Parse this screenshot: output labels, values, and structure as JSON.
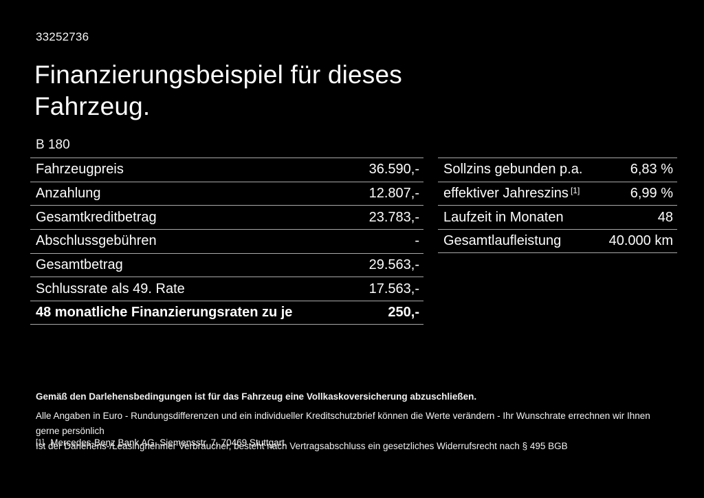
{
  "page": {
    "vehicle_id": "33252736",
    "title_line1": "Finanzierungsbeispiel für dieses",
    "title_line2": "Fahrzeug.",
    "model": "B 180"
  },
  "financing_table": {
    "rows": [
      {
        "label": "Fahrzeugpreis",
        "value": "36.590,-"
      },
      {
        "label": "Anzahlung",
        "value": "12.807,-"
      },
      {
        "label": "Gesamtkreditbetrag",
        "value": "23.783,-"
      },
      {
        "label": "Abschlussgebühren",
        "value": "-"
      },
      {
        "label": "Gesamtbetrag",
        "value": "29.563,-"
      },
      {
        "label": "Schlussrate als 49. Rate",
        "value": "17.563,-"
      },
      {
        "label": "48 monatliche Finanzierungsraten zu je",
        "value": "250,-"
      }
    ]
  },
  "conditions_table": {
    "rows": [
      {
        "label": "Sollzins gebunden p.a.",
        "value": "6,83 %"
      },
      {
        "label": "effektiver Jahreszins",
        "sup": "[1]",
        "value": "6,99 %"
      },
      {
        "label": "Laufzeit in Monaten",
        "value": "48"
      },
      {
        "label": "Gesamtlaufleistung",
        "value": "40.000 km"
      }
    ]
  },
  "notes": {
    "insurance": "Gemäß den Darlehensbedingungen ist für das Fahrzeug eine Vollkaskoversicherung abzuschließen.",
    "line1": "Alle Angaben in Euro - Rundungsdifferenzen und ein individueller Kreditschutzbrief können die Werte verändern - Ihr Wunschrate errechnen wir Ihnen gerne persönlich",
    "line2": "Ist der Darlehens-/Leasingnehmer Verbraucher, besteht nach Vertragsabschluss ein gesetzliches Widerrufsrecht nach § 495 BGB"
  },
  "footnote": {
    "marker": "[1]",
    "text": "Mercedes-Benz Bank AG, Siemensstr. 7, 70469 Stuttgart."
  },
  "colors": {
    "background": "#000000",
    "text": "#fdfdfd",
    "divider": "#aaaaaa"
  }
}
